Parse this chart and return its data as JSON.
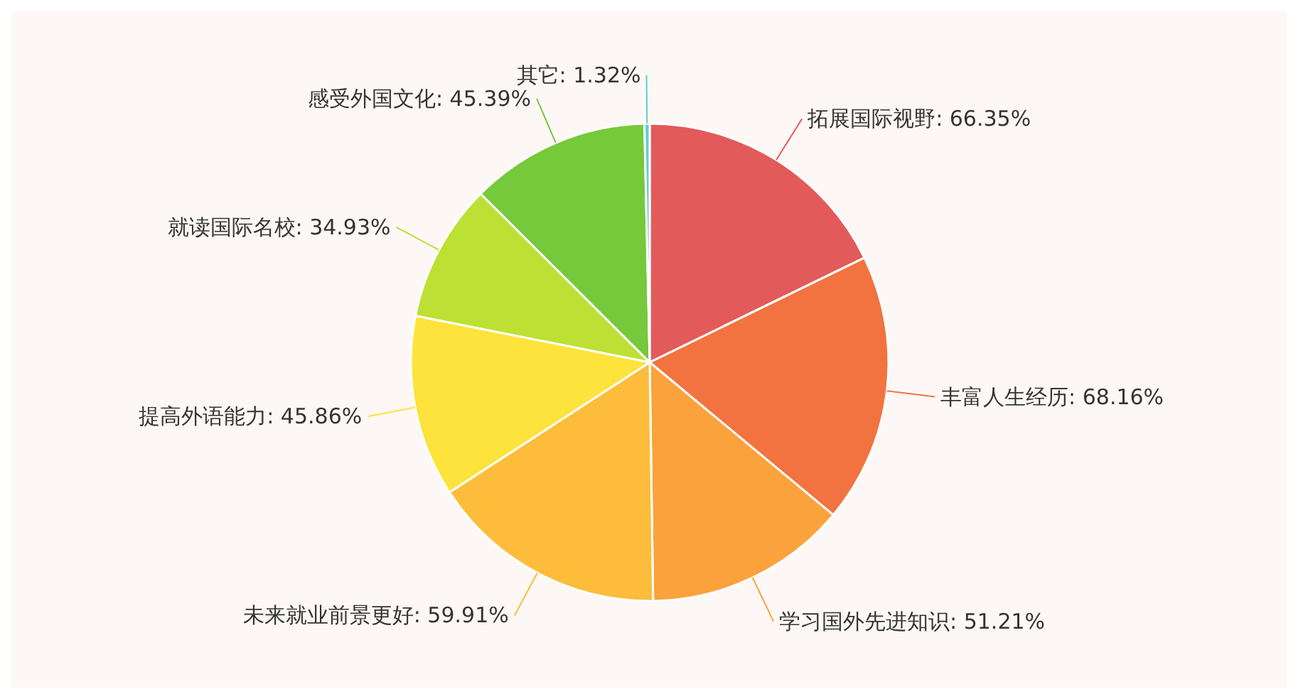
{
  "chart_data": {
    "type": "pie",
    "categories": [
      "拓展国际视野",
      "丰富人生经历",
      "学习国外先进知识",
      "未来就业前景更好",
      "提高外语能力",
      "就读国际名校",
      "感受外国文化",
      "其它"
    ],
    "values": [
      66.35,
      68.16,
      51.21,
      59.91,
      45.86,
      34.93,
      45.39,
      1.32
    ],
    "value_labels": [
      "66.35%",
      "68.16%",
      "51.21%",
      "59.91%",
      "45.86%",
      "34.93%",
      "45.39%",
      "1.32%"
    ],
    "colors": [
      "#e35a5a",
      "#f2733f",
      "#fba23c",
      "#fdbd3b",
      "#fde33b",
      "#bde034",
      "#76c93a",
      "#5fcfd0"
    ]
  }
}
